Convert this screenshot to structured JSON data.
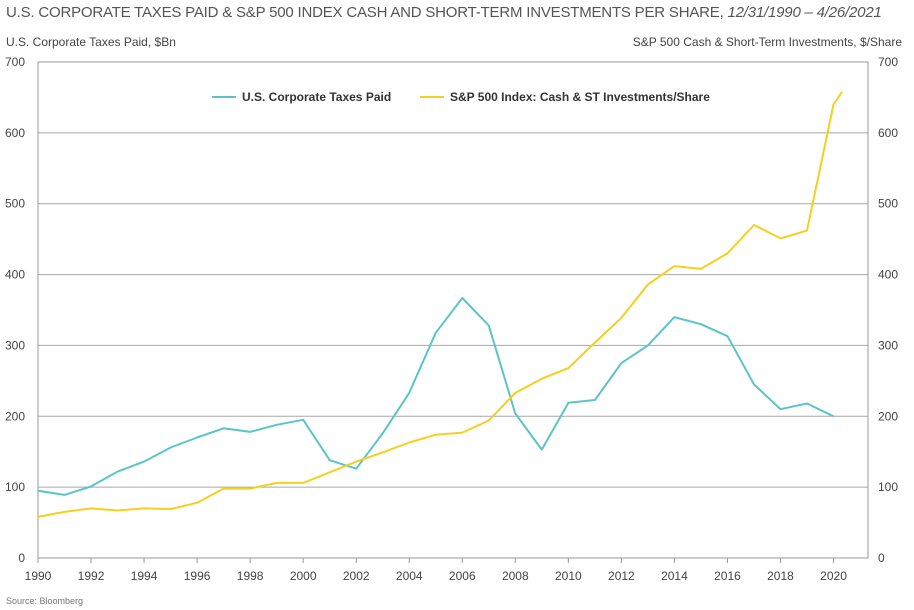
{
  "header": {
    "title_main": "U.S. CORPORATE TAXES PAID & S&P 500 INDEX CASH AND SHORT-TERM INVESTMENTS PER SHARE, ",
    "title_dates": "12/31/1990 – 4/26/2021"
  },
  "footer": {
    "source": "Source: Bloomberg"
  },
  "chart_data": {
    "type": "line",
    "title": "U.S. CORPORATE TAXES PAID & S&P 500 INDEX CASH AND SHORT-TERM INVESTMENTS PER SHARE, 12/31/1990 – 4/26/2021",
    "ylabel_left": "U.S. Corporate Taxes Paid, $Bn",
    "ylabel_right": "S&P 500 Cash & Short-Term Investments, $/Share",
    "xlim": [
      1990,
      2021.3
    ],
    "ylim_left": [
      0,
      700
    ],
    "ylim_right": [
      0,
      700
    ],
    "x_ticks": [
      "1990",
      "1992",
      "1994",
      "1996",
      "1998",
      "2000",
      "2002",
      "2004",
      "2006",
      "2008",
      "2010",
      "2012",
      "2014",
      "2016",
      "2018",
      "2020"
    ],
    "y_ticks_left": [
      "0",
      "100",
      "200",
      "300",
      "400",
      "500",
      "600",
      "700"
    ],
    "y_ticks_right": [
      "0",
      "100",
      "200",
      "300",
      "400",
      "500",
      "600",
      "700"
    ],
    "grid": "horizontal",
    "legend_position": "top-center",
    "series": [
      {
        "name": "U.S. Corporate Taxes Paid",
        "color": "#5bc4c8",
        "axis": "left",
        "x": [
          1990,
          1991,
          1992,
          1993,
          1994,
          1995,
          1996,
          1997,
          1998,
          1999,
          2000,
          2001,
          2002,
          2003,
          2004,
          2005,
          2006,
          2007,
          2008,
          2009,
          2010,
          2011,
          2012,
          2013,
          2014,
          2015,
          2016,
          2017,
          2018,
          2019,
          2020
        ],
        "y": [
          95,
          89,
          101,
          122,
          136,
          156,
          170,
          183,
          178,
          188,
          195,
          138,
          126,
          176,
          233,
          318,
          367,
          328,
          204,
          153,
          219,
          223,
          275,
          300,
          340,
          330,
          313,
          245,
          210,
          218,
          200
        ]
      },
      {
        "name": "S&P 500 Index: Cash & ST Investments/Share",
        "color": "#f5d01e",
        "axis": "right",
        "x": [
          1990,
          1991,
          1992,
          1993,
          1994,
          1995,
          1996,
          1997,
          1998,
          1999,
          2000,
          2001,
          2002,
          2003,
          2004,
          2005,
          2006,
          2007,
          2008,
          2009,
          2010,
          2011,
          2012,
          2013,
          2014,
          2015,
          2016,
          2017,
          2018,
          2019,
          2020,
          2020.32
        ],
        "y": [
          58,
          65,
          70,
          67,
          70,
          69,
          78,
          98,
          98,
          106,
          106,
          121,
          136,
          149,
          163,
          174,
          177,
          194,
          233,
          253,
          268,
          304,
          339,
          386,
          412,
          408,
          430,
          470,
          451,
          462,
          640,
          658
        ]
      }
    ]
  }
}
